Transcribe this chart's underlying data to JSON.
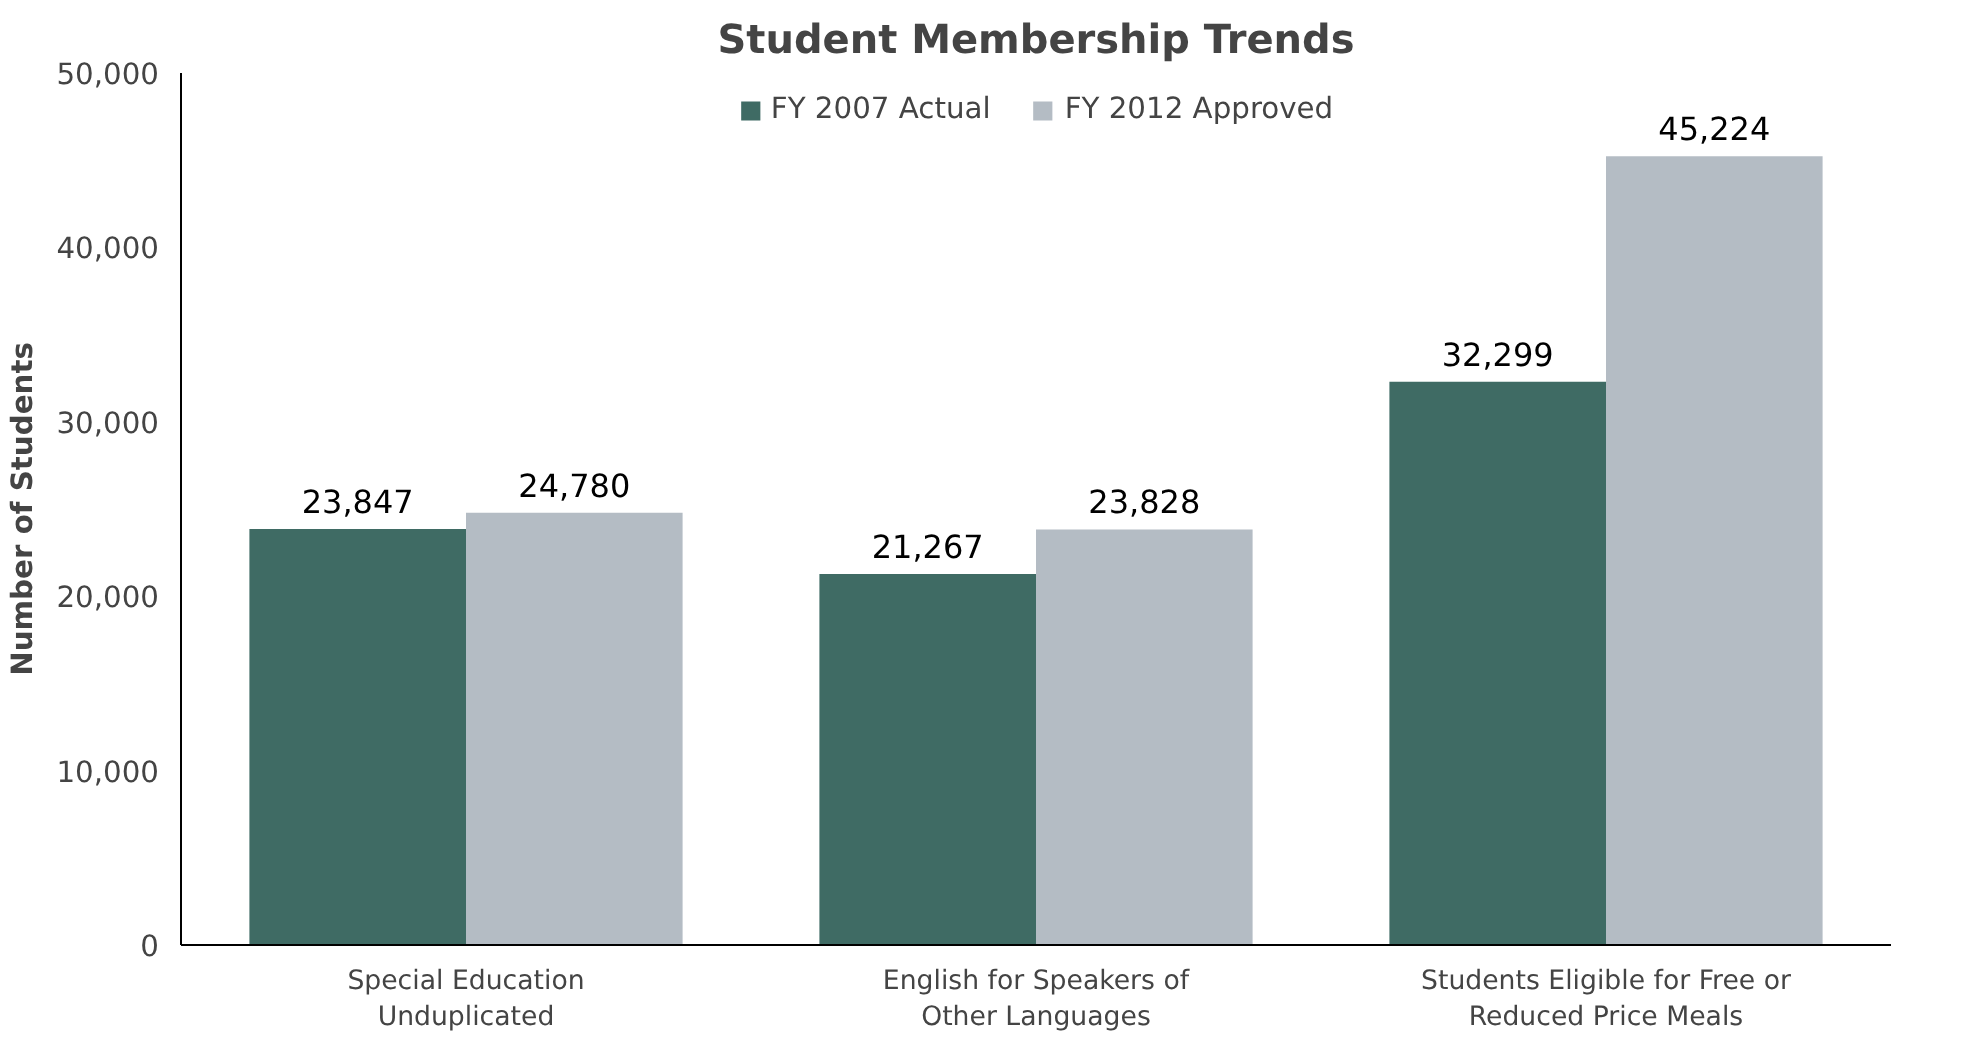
{
  "chart_data": {
    "type": "bar",
    "title": "Student Membership Trends",
    "ylabel": "Number of Students",
    "categories": [
      "Special Education\nUnduplicated",
      "English for Speakers of\nOther Languages",
      "Students Eligible for Free or\nReduced Price Meals"
    ],
    "series": [
      {
        "name": "FY 2007 Actual",
        "color": "#3f6b64",
        "values": [
          23847,
          21267,
          32299
        ],
        "value_labels": [
          "23,847",
          "21,267",
          "32,299"
        ]
      },
      {
        "name": "FY 2012 Approved",
        "color": "#b4bcc4",
        "values": [
          24780,
          23828,
          45224
        ],
        "value_labels": [
          "24,780",
          "23,828",
          "45,224"
        ]
      }
    ],
    "ylim": [
      0,
      50000
    ],
    "yticks": [
      0,
      {
        "value": 10000,
        "label": "10,000"
      },
      {
        "value": 20000,
        "label": "20,000"
      },
      {
        "value": 30000,
        "label": "30,000"
      },
      {
        "value": 40000,
        "label": "40,000"
      },
      {
        "value": 50000,
        "label": "50,000"
      }
    ],
    "grid": false,
    "legend": "top"
  }
}
